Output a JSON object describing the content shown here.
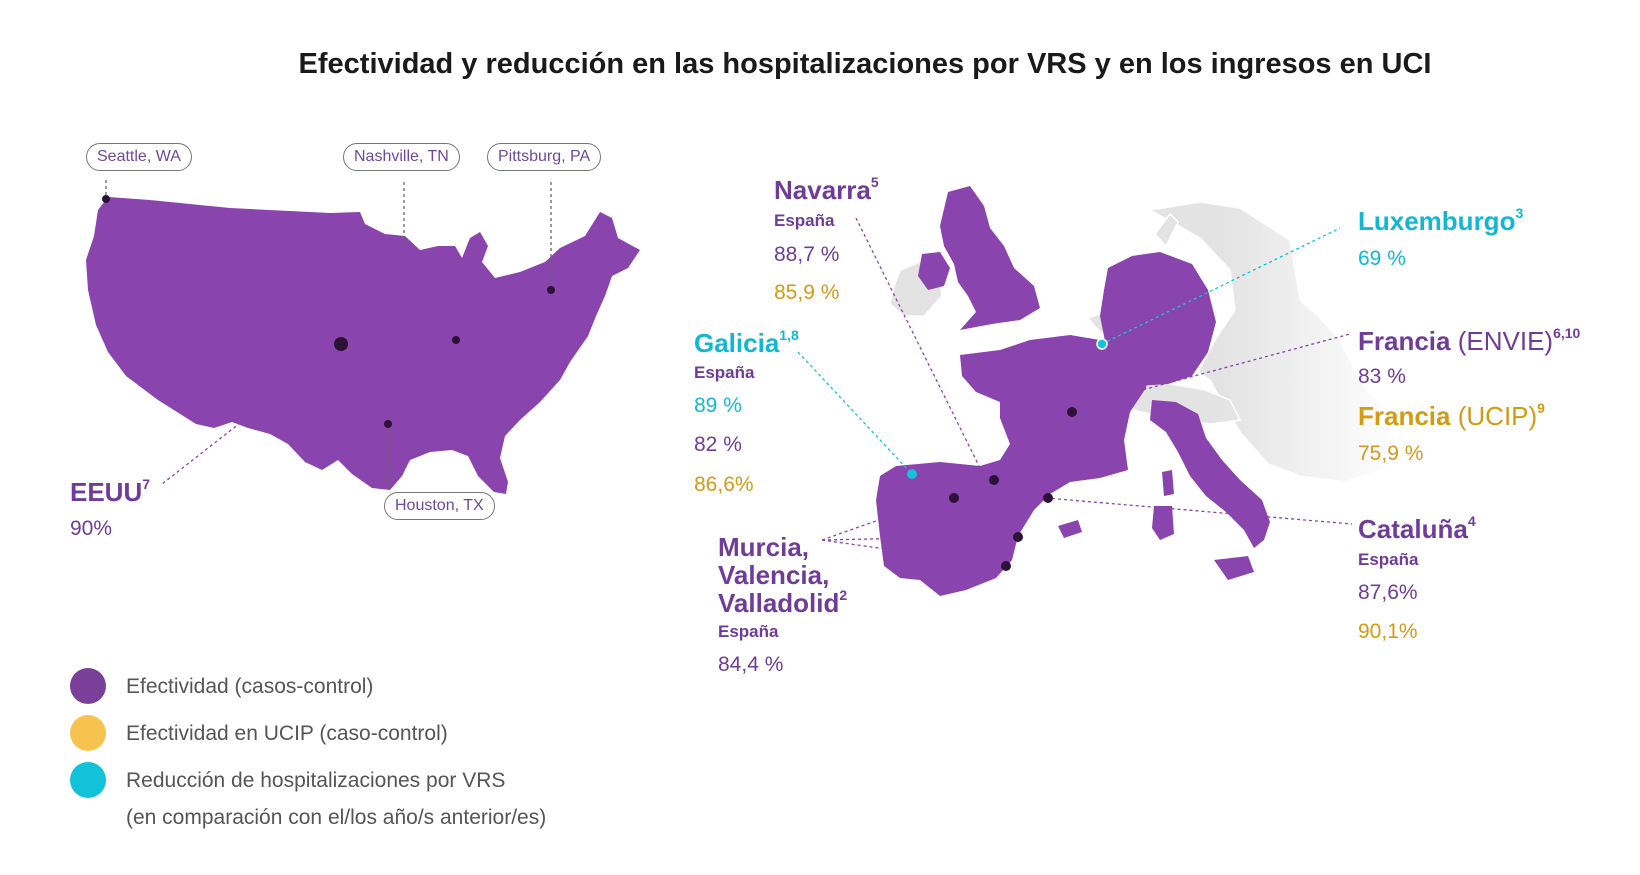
{
  "title": "Efectividad y reducción en las hospitalizaciones por VRS y en los ingresos en UCI",
  "colors": {
    "purple": "#8a44ad",
    "dark_purple": "#6f3d98",
    "cyan": "#12b8d2",
    "gold": "#d29b16",
    "gray_land": "#e3e3e3"
  },
  "usa": {
    "cities": [
      "Seattle, WA",
      "Nashville, TN",
      "Pittsburg, PA",
      "Houston, TX"
    ],
    "label": "EEUU",
    "ref": "7",
    "value": "90%"
  },
  "europe": {
    "navarra": {
      "name": "Navarra",
      "ref": "5",
      "country": "España",
      "value1": "88,7 %",
      "value2": "85,9 %"
    },
    "galicia": {
      "name": "Galicia",
      "ref": "1,8",
      "country": "España",
      "value1": "89 %",
      "value2": "82 %",
      "value3": "86,6%"
    },
    "murcia": {
      "name_lines": [
        "Murcia,",
        "Valencia,",
        "Valladolid"
      ],
      "ref": "2",
      "country": "España",
      "value": "84,4 %"
    },
    "luxemburgo": {
      "name": "Luxemburgo",
      "ref": "3",
      "value": "69 %"
    },
    "francia_envie": {
      "name": "Francia",
      "qualifier": "(ENVIE)",
      "ref": "6,10",
      "value": "83 %"
    },
    "francia_ucip": {
      "name": "Francia",
      "qualifier": "(UCIP)",
      "ref": "9",
      "value": "75,9 %"
    },
    "cataluna": {
      "name": "Cataluña",
      "ref": "4",
      "country": "España",
      "value1": "87,6%",
      "value2": "90,1%"
    }
  },
  "legend": [
    {
      "label": "Efectividad (casos-control)",
      "color": "#7a3f98"
    },
    {
      "label": "Efectividad en UCIP (caso-control)",
      "color": "#f6c350"
    },
    {
      "label": "Reducción de hospitalizaciones por VRS",
      "label2": "(en comparación con el/los año/s anterior/es)",
      "color": "#12c2d8"
    }
  ]
}
